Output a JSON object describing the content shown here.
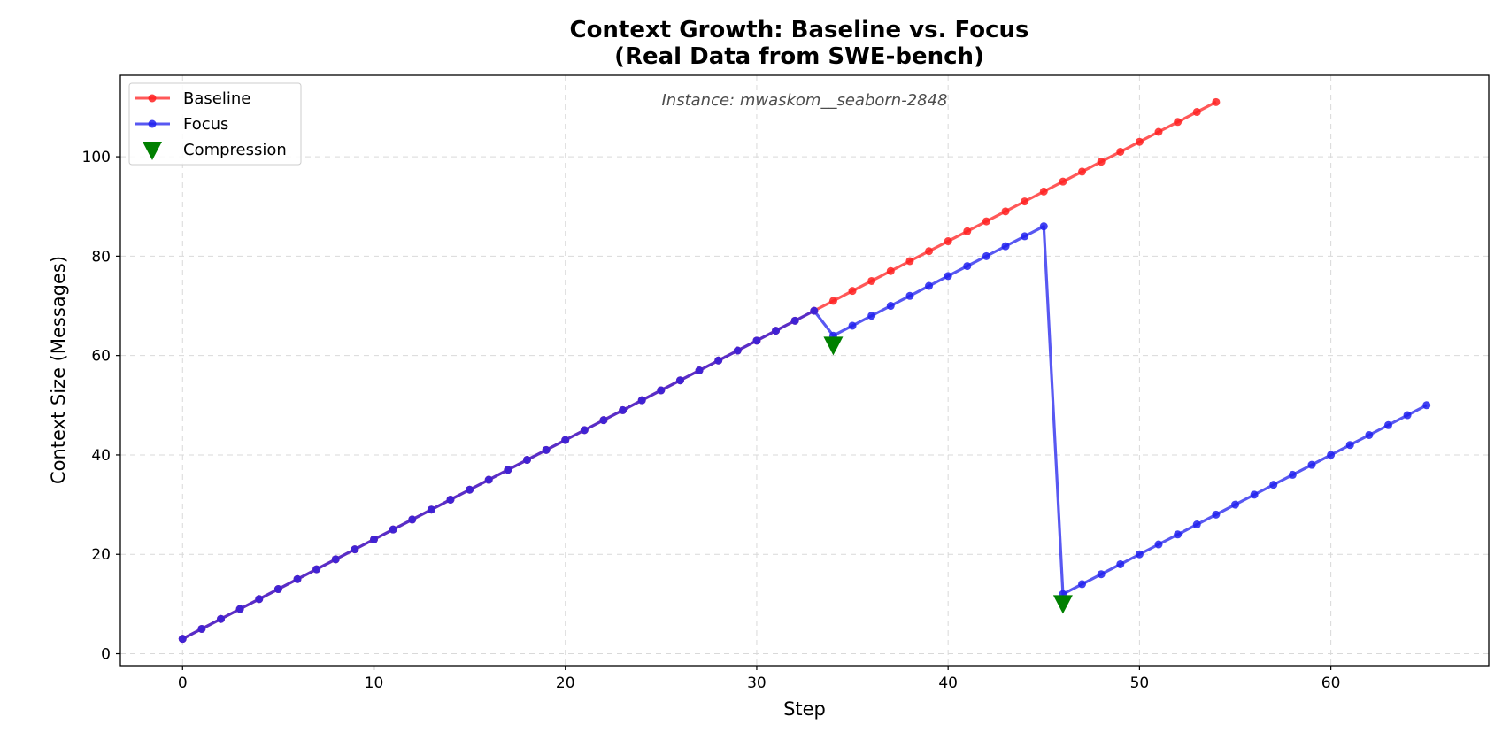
{
  "chart_data": {
    "type": "line",
    "title": "Context Growth: Baseline vs. Focus",
    "subtitle": "(Real Data from SWE-bench)",
    "xlabel": "Step",
    "ylabel": "Context Size (Messages)",
    "xlim": [
      -3.25,
      68.25
    ],
    "ylim": [
      -2.4,
      116.4
    ],
    "xticks": [
      0,
      10,
      20,
      30,
      40,
      50,
      60
    ],
    "yticks": [
      0,
      20,
      40,
      60,
      80,
      100
    ],
    "grid": true,
    "legend_position": "top-left",
    "annotation": "Instance: mwaskom__seaborn-2848",
    "series": [
      {
        "name": "Baseline",
        "color": "#ff2020",
        "marker": "circle",
        "x": [
          0,
          1,
          2,
          3,
          4,
          5,
          6,
          7,
          8,
          9,
          10,
          11,
          12,
          13,
          14,
          15,
          16,
          17,
          18,
          19,
          20,
          21,
          22,
          23,
          24,
          25,
          26,
          27,
          28,
          29,
          30,
          31,
          32,
          33,
          34,
          35,
          36,
          37,
          38,
          39,
          40,
          41,
          42,
          43,
          44,
          45,
          46,
          47,
          48,
          49,
          50,
          51,
          52,
          53,
          54
        ],
        "y": [
          3,
          5,
          7,
          9,
          11,
          13,
          15,
          17,
          19,
          21,
          23,
          25,
          27,
          29,
          31,
          33,
          35,
          37,
          39,
          41,
          43,
          45,
          47,
          49,
          51,
          53,
          55,
          57,
          59,
          61,
          63,
          65,
          67,
          69,
          71,
          73,
          75,
          77,
          79,
          81,
          83,
          85,
          87,
          89,
          91,
          93,
          95,
          97,
          99,
          101,
          103,
          105,
          107,
          109,
          111
        ]
      },
      {
        "name": "Focus",
        "color": "#2020ee",
        "marker": "circle",
        "x": [
          0,
          1,
          2,
          3,
          4,
          5,
          6,
          7,
          8,
          9,
          10,
          11,
          12,
          13,
          14,
          15,
          16,
          17,
          18,
          19,
          20,
          21,
          22,
          23,
          24,
          25,
          26,
          27,
          28,
          29,
          30,
          31,
          32,
          33,
          34,
          35,
          36,
          37,
          38,
          39,
          40,
          41,
          42,
          43,
          44,
          45,
          46,
          47,
          48,
          49,
          50,
          51,
          52,
          53,
          54,
          55,
          56,
          57,
          58,
          59,
          60,
          61,
          62,
          63,
          64,
          65
        ],
        "y": [
          3,
          5,
          7,
          9,
          11,
          13,
          15,
          17,
          19,
          21,
          23,
          25,
          27,
          29,
          31,
          33,
          35,
          37,
          39,
          41,
          43,
          45,
          47,
          49,
          51,
          53,
          55,
          57,
          59,
          61,
          63,
          65,
          67,
          69,
          64,
          66,
          68,
          70,
          72,
          74,
          76,
          78,
          80,
          82,
          84,
          86,
          12,
          14,
          16,
          18,
          20,
          22,
          24,
          26,
          28,
          30,
          32,
          34,
          36,
          38,
          40,
          42,
          44,
          46,
          48,
          50
        ]
      },
      {
        "name": "Compression",
        "color": "#008000",
        "marker": "triangle-down",
        "x": [
          34,
          46
        ],
        "y": [
          62,
          10
        ]
      }
    ]
  }
}
